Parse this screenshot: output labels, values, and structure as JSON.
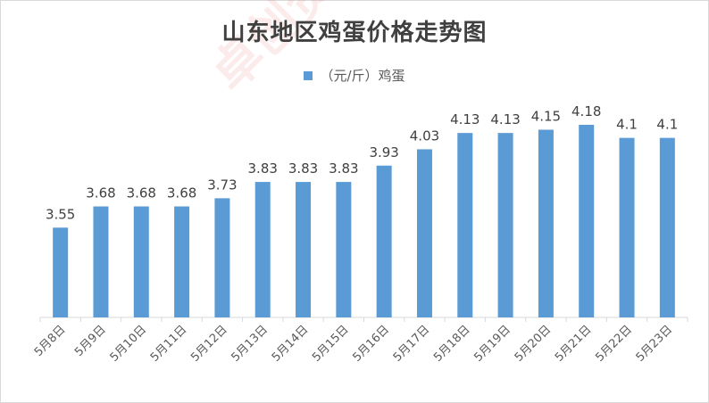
{
  "chart_data": {
    "type": "bar",
    "title": "山东地区鸡蛋价格走势图",
    "legend": {
      "position": "top",
      "label": "（元/斤）鸡蛋"
    },
    "categories": [
      "5月8日",
      "5月9日",
      "5月10日",
      "5月11日",
      "5月12日",
      "5月13日",
      "5月14日",
      "5月15日",
      "5月16日",
      "5月17日",
      "5月18日",
      "5月19日",
      "5月20日",
      "5月21日",
      "5月22日",
      "5月23日"
    ],
    "series": [
      {
        "name": "（元/斤）鸡蛋",
        "values": [
          3.55,
          3.68,
          3.68,
          3.68,
          3.73,
          3.83,
          3.83,
          3.83,
          3.93,
          4.03,
          4.13,
          4.13,
          4.15,
          4.18,
          4.1,
          4.1
        ],
        "labels": [
          "3.55",
          "3.68",
          "3.68",
          "3.68",
          "3.73",
          "3.83",
          "3.83",
          "3.83",
          "3.93",
          "4.03",
          "4.13",
          "4.13",
          "4.15",
          "4.18",
          "4.1",
          "4.1"
        ]
      }
    ],
    "bar_color": "#5b9bd5",
    "ylim": [
      3.0,
      4.3
    ],
    "grid": false
  },
  "watermark": {
    "text": "卓创资讯 www.sci99.com"
  }
}
